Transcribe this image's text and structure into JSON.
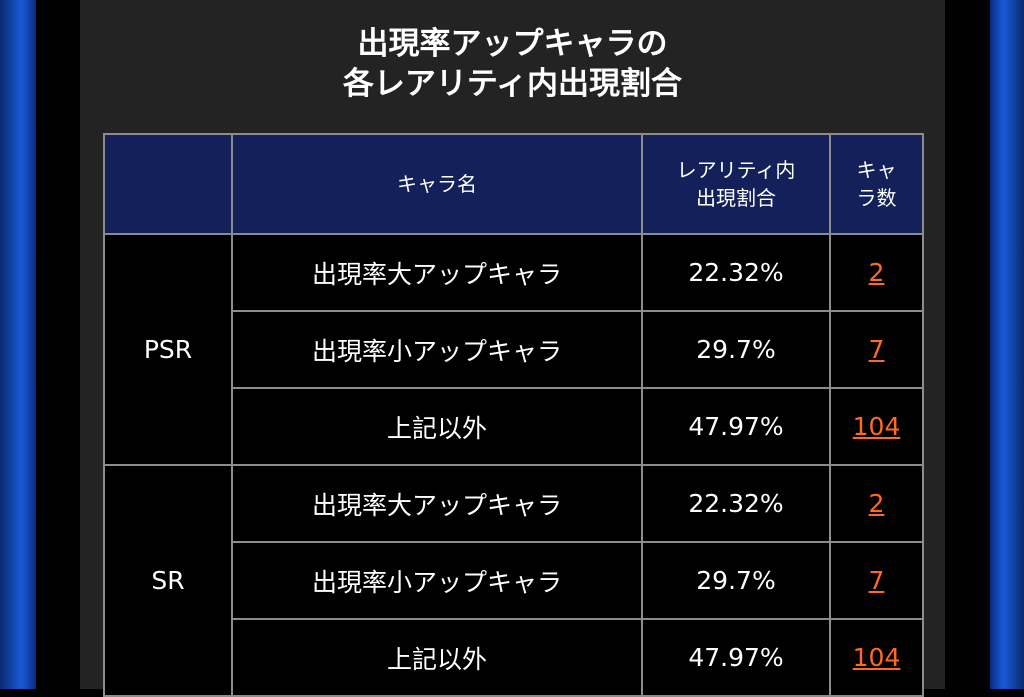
{
  "title": [
    "出現率アップキャラの",
    "各レアリティ内出現割合"
  ],
  "table": {
    "header": {
      "name": "キャラ名",
      "rate": [
        "レアリティ内",
        "出現割合"
      ],
      "count": [
        "キャ",
        "ラ数"
      ]
    },
    "groups": [
      {
        "rarity": "PSR",
        "rows": [
          {
            "name": "出現率大アップキャラ",
            "rate": "22.32%",
            "count": 2
          },
          {
            "name": "出現率小アップキャラ",
            "rate": "29.7%",
            "count": 7
          },
          {
            "name": "上記以外",
            "rate": "47.97%",
            "count": 104
          }
        ]
      },
      {
        "rarity": "SR",
        "rows": [
          {
            "name": "出現率大アップキャラ",
            "rate": "22.32%",
            "count": 2
          },
          {
            "name": "出現率小アップキャラ",
            "rate": "29.7%",
            "count": 7
          },
          {
            "name": "上記以外",
            "rate": "47.97%",
            "count": 104
          }
        ]
      }
    ]
  }
}
